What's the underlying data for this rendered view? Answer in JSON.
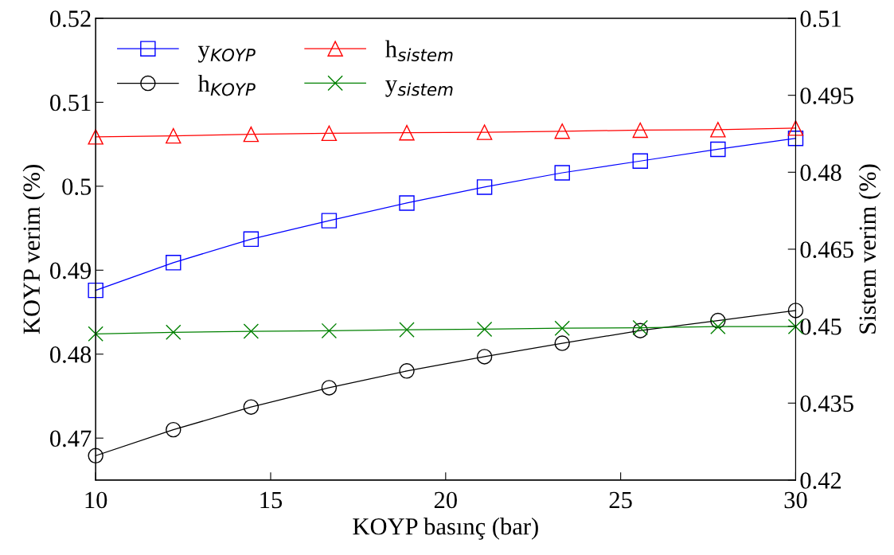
{
  "chart_data": {
    "type": "line",
    "xlabel": "KOYP basınç (bar)",
    "ylabel": "KOYP verim (%)",
    "y2label": "Sistem verim (%)",
    "x": [
      10,
      12.22,
      14.44,
      16.67,
      18.89,
      21.11,
      23.33,
      25.56,
      27.78,
      30
    ],
    "xlim": [
      10,
      30
    ],
    "xticks": [
      10,
      15,
      20,
      25,
      30
    ],
    "ylim": [
      0.465,
      0.52
    ],
    "yticks": [
      0.47,
      0.48,
      0.49,
      0.5,
      0.51,
      0.52
    ],
    "y2lim": [
      0.42,
      0.51
    ],
    "y2ticks": [
      0.42,
      0.435,
      0.45,
      0.465,
      0.48,
      0.495,
      0.51
    ],
    "legend": "top left",
    "grid": false,
    "line_style": "solid",
    "series": [
      {
        "name": "y$_{KOYP}$",
        "color": "#0000ff",
        "marker": "square",
        "values": [
          0.4876,
          0.4909,
          0.4937,
          0.4959,
          0.498,
          0.4999,
          0.5016,
          0.503,
          0.5044,
          0.5057
        ]
      },
      {
        "name": "h$_{KOYP}$",
        "color": "#000000",
        "marker": "circle",
        "values": [
          0.4679,
          0.471,
          0.4737,
          0.476,
          0.478,
          0.4797,
          0.4813,
          0.4828,
          0.484,
          0.4852
        ]
      },
      {
        "name": "h$_{sistem}$",
        "color": "#ff0000",
        "marker": "triangle",
        "axis": "y2",
        "values": [
          0.4869,
          0.4871,
          0.4874,
          0.4876,
          0.4877,
          0.4878,
          0.488,
          0.4882,
          0.4883,
          0.4886
        ]
      },
      {
        "name": "y$_{sistem}$",
        "color": "#008000",
        "marker": "cross",
        "axis": "y2",
        "values": [
          0.4485,
          0.4488,
          0.449,
          0.4491,
          0.4493,
          0.4494,
          0.4496,
          0.4497,
          0.4499,
          0.4499
        ]
      }
    ]
  }
}
